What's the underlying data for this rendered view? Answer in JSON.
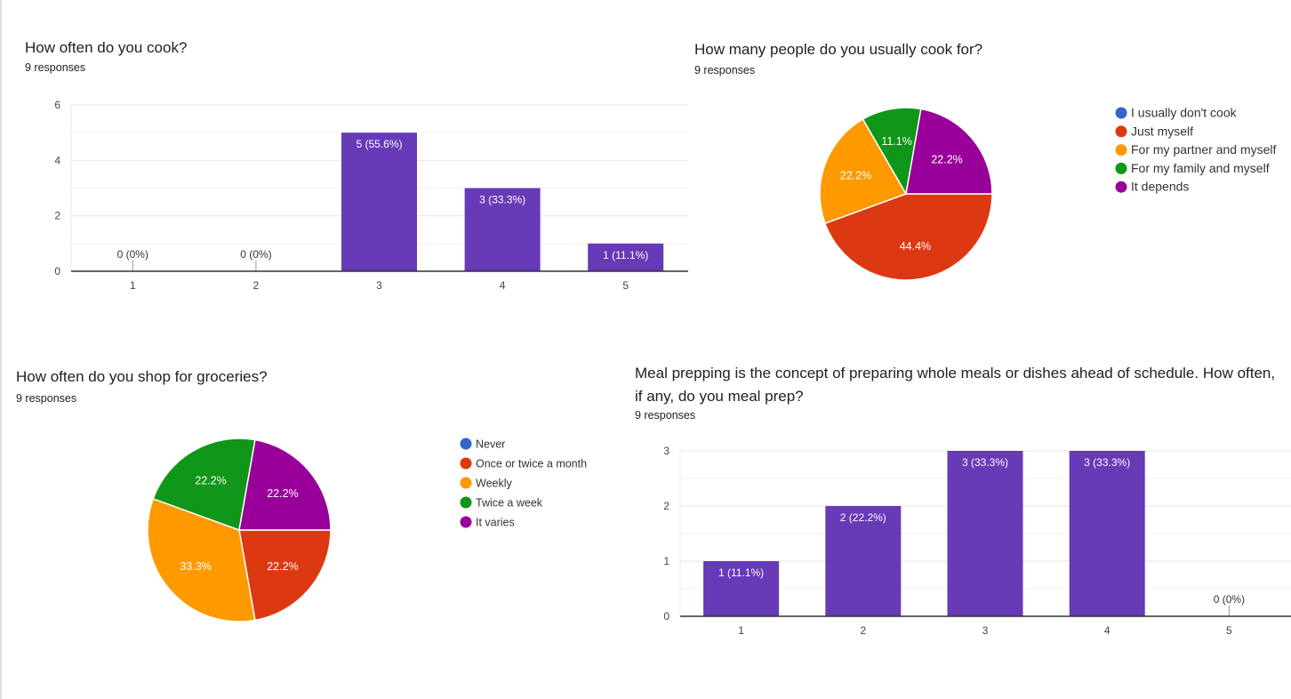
{
  "chart_data": [
    {
      "type": "bar",
      "title": "How often do you cook?",
      "subtitle": "9 responses",
      "categories": [
        "1",
        "2",
        "3",
        "4",
        "5"
      ],
      "values": [
        0,
        0,
        5,
        3,
        1
      ],
      "data_labels": [
        "0 (0%)",
        "0 (0%)",
        "5 (55.6%)",
        "3 (33.3%)",
        "1 (11.1%)"
      ],
      "ylim": [
        0,
        6
      ],
      "yticks": [
        "0",
        "2",
        "4",
        "6"
      ],
      "grid": true,
      "color": "#673ab7"
    },
    {
      "type": "pie",
      "title": "How many people do you usually cook for?",
      "subtitle": "9 responses",
      "legend_position": "right",
      "slices": [
        {
          "label": "I usually don't cook",
          "value": 0,
          "pct": "",
          "color": "#3366cc"
        },
        {
          "label": "Just myself",
          "value": 44.4,
          "pct": "44.4%",
          "color": "#dc3912"
        },
        {
          "label": "For my partner and myself",
          "value": 22.2,
          "pct": "22.2%",
          "color": "#ff9900"
        },
        {
          "label": "For my family and myself",
          "value": 11.1,
          "pct": "11.1%",
          "color": "#109618"
        },
        {
          "label": "It depends",
          "value": 22.2,
          "pct": "22.2%",
          "color": "#990099"
        }
      ]
    },
    {
      "type": "pie",
      "title": "How often do you shop for groceries?",
      "subtitle": "9 responses",
      "legend_position": "right",
      "slices": [
        {
          "label": "Never",
          "value": 0,
          "pct": "",
          "color": "#3366cc"
        },
        {
          "label": "Once or twice a month",
          "value": 22.2,
          "pct": "22.2%",
          "color": "#dc3912"
        },
        {
          "label": "Weekly",
          "value": 33.3,
          "pct": "33.3%",
          "color": "#ff9900"
        },
        {
          "label": "Twice a week",
          "value": 22.2,
          "pct": "22.2%",
          "color": "#109618"
        },
        {
          "label": "It varies",
          "value": 22.2,
          "pct": "22.2%",
          "color": "#990099"
        }
      ]
    },
    {
      "type": "bar",
      "title": "Meal prepping is the concept of preparing whole meals or dishes ahead of schedule. How often, if any, do you meal prep?",
      "subtitle": "9 responses",
      "categories": [
        "1",
        "2",
        "3",
        "4",
        "5"
      ],
      "values": [
        1,
        2,
        3,
        3,
        0
      ],
      "data_labels": [
        "1 (11.1%)",
        "2 (22.2%)",
        "3 (33.3%)",
        "3 (33.3%)",
        "0 (0%)"
      ],
      "ylim": [
        0,
        3
      ],
      "yticks": [
        "0",
        "1",
        "2",
        "3"
      ],
      "grid": true,
      "color": "#673ab7"
    }
  ]
}
